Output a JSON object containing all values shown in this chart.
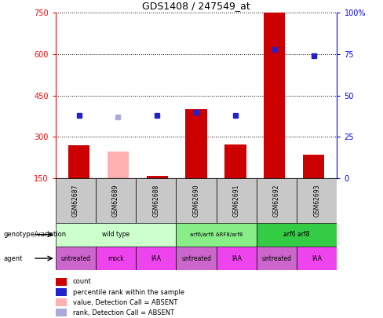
{
  "title": "GDS1408 / 247549_at",
  "samples": [
    "GSM62687",
    "GSM62689",
    "GSM62688",
    "GSM62690",
    "GSM62691",
    "GSM62692",
    "GSM62693"
  ],
  "count_values": [
    270,
    245,
    158,
    400,
    272,
    750,
    235
  ],
  "count_absent": [
    false,
    true,
    false,
    false,
    false,
    false,
    false
  ],
  "percentile_values": [
    38,
    37,
    38,
    40,
    38,
    78,
    74
  ],
  "percentile_absent": [
    false,
    true,
    false,
    false,
    false,
    false,
    false
  ],
  "ylim_left": [
    150,
    750
  ],
  "ylim_right": [
    0,
    100
  ],
  "yticks_left": [
    150,
    300,
    450,
    600,
    750
  ],
  "yticks_right": [
    0,
    25,
    50,
    75,
    100
  ],
  "bar_color": "#cc0000",
  "bar_absent_color": "#ffb0b0",
  "dot_color": "#2222cc",
  "dot_absent_color": "#aaaadd",
  "genotype_groups": [
    {
      "label": "wild type",
      "start": 0,
      "end": 3,
      "color": "#ccffcc"
    },
    {
      "label": "arf6/arf6 ARF8/arf8",
      "start": 3,
      "end": 5,
      "color": "#88ee88"
    },
    {
      "label": "arf6 arf8",
      "start": 5,
      "end": 7,
      "color": "#33cc44"
    }
  ],
  "agent_labels": [
    "untreated",
    "mock",
    "IAA",
    "untreated",
    "IAA",
    "untreated",
    "IAA"
  ],
  "agent_colors": [
    "#cc66cc",
    "#ee44ee",
    "#ee44ee",
    "#cc66cc",
    "#ee44ee",
    "#cc66cc",
    "#ee44ee"
  ],
  "sample_bg_color": "#c8c8c8",
  "legend_items": [
    {
      "color": "#cc0000",
      "label": "count",
      "marker": "square"
    },
    {
      "color": "#2222cc",
      "label": "percentile rank within the sample",
      "marker": "square"
    },
    {
      "color": "#ffb0b0",
      "label": "value, Detection Call = ABSENT",
      "marker": "square"
    },
    {
      "color": "#aaaadd",
      "label": "rank, Detection Call = ABSENT",
      "marker": "square"
    }
  ]
}
